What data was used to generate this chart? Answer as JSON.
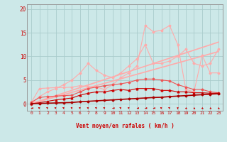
{
  "background_color": "#cce8e8",
  "grid_color": "#aacccc",
  "x_label": "Vent moyen/en rafales ( km/h )",
  "x_ticks": [
    0,
    1,
    2,
    3,
    4,
    5,
    6,
    7,
    8,
    9,
    10,
    11,
    12,
    13,
    14,
    15,
    16,
    17,
    18,
    19,
    20,
    21,
    22,
    23
  ],
  "ylim": [
    -1.5,
    21
  ],
  "xlim": [
    -0.5,
    23.5
  ],
  "y_ticks": [
    0,
    5,
    10,
    15,
    20
  ],
  "line_straight1": {
    "x": [
      0,
      23
    ],
    "y": [
      0.0,
      13.0
    ],
    "color": "#ffaaaa",
    "lw": 1.2,
    "marker": null,
    "ms": 0,
    "zorder": 2
  },
  "line_straight2": {
    "x": [
      0,
      23
    ],
    "y": [
      0.0,
      11.0
    ],
    "color": "#ffaaaa",
    "lw": 1.2,
    "marker": null,
    "ms": 0,
    "zorder": 2
  },
  "line_wavy1": {
    "x": [
      0,
      1,
      2,
      3,
      4,
      5,
      6,
      7,
      8,
      9,
      10,
      11,
      12,
      13,
      14,
      15,
      16,
      17,
      18,
      19,
      20,
      21,
      22,
      23
    ],
    "y": [
      0.3,
      3.2,
      3.3,
      3.4,
      3.4,
      3.5,
      3.8,
      3.6,
      3.5,
      3.0,
      4.0,
      5.5,
      6.5,
      8.0,
      16.5,
      15.2,
      15.5,
      16.5,
      12.5,
      3.0,
      2.5,
      10.2,
      6.5,
      6.5
    ],
    "color": "#ffaaaa",
    "lw": 0.8,
    "marker": "D",
    "ms": 1.5,
    "zorder": 3
  },
  "line_wavy2": {
    "x": [
      0,
      1,
      2,
      3,
      4,
      5,
      6,
      7,
      8,
      9,
      10,
      11,
      12,
      13,
      14,
      15,
      16,
      17,
      18,
      19,
      20,
      21,
      22,
      23
    ],
    "y": [
      0.0,
      1.5,
      2.5,
      3.2,
      4.0,
      5.0,
      6.5,
      8.5,
      7.0,
      6.0,
      5.5,
      6.5,
      8.0,
      9.5,
      12.5,
      8.5,
      8.5,
      9.0,
      10.0,
      11.5,
      8.5,
      8.0,
      8.5,
      11.5
    ],
    "color": "#ffaaaa",
    "lw": 0.8,
    "marker": "D",
    "ms": 1.5,
    "zorder": 3
  },
  "line_mid": {
    "x": [
      0,
      1,
      2,
      3,
      4,
      5,
      6,
      7,
      8,
      9,
      10,
      11,
      12,
      13,
      14,
      15,
      16,
      17,
      18,
      19,
      20,
      21,
      22,
      23
    ],
    "y": [
      0.3,
      1.3,
      1.5,
      1.6,
      1.7,
      1.8,
      2.5,
      3.2,
      3.5,
      3.8,
      4.0,
      4.2,
      4.5,
      5.0,
      5.2,
      5.2,
      5.0,
      4.8,
      4.0,
      3.5,
      3.0,
      3.0,
      2.5,
      2.3
    ],
    "color": "#ee5555",
    "lw": 0.8,
    "marker": "D",
    "ms": 1.5,
    "zorder": 4
  },
  "line_low2": {
    "x": [
      0,
      1,
      2,
      3,
      4,
      5,
      6,
      7,
      8,
      9,
      10,
      11,
      12,
      13,
      14,
      15,
      16,
      17,
      18,
      19,
      20,
      21,
      22,
      23
    ],
    "y": [
      0.0,
      0.2,
      0.5,
      0.8,
      1.0,
      1.2,
      1.8,
      2.2,
      2.5,
      2.5,
      2.8,
      3.0,
      2.8,
      3.2,
      3.2,
      3.2,
      2.8,
      2.8,
      2.5,
      2.5,
      2.3,
      2.3,
      2.2,
      2.2
    ],
    "color": "#cc0000",
    "lw": 0.8,
    "marker": "^",
    "ms": 2,
    "zorder": 5
  },
  "line_low1": {
    "x": [
      0,
      1,
      2,
      3,
      4,
      5,
      6,
      7,
      8,
      9,
      10,
      11,
      12,
      13,
      14,
      15,
      16,
      17,
      18,
      19,
      20,
      21,
      22,
      23
    ],
    "y": [
      0.0,
      0.05,
      0.1,
      0.15,
      0.2,
      0.25,
      0.4,
      0.5,
      0.6,
      0.7,
      0.8,
      0.9,
      1.0,
      1.1,
      1.2,
      1.3,
      1.35,
      1.5,
      1.6,
      1.7,
      1.8,
      1.9,
      2.0,
      2.1
    ],
    "color": "#aa0000",
    "lw": 1.2,
    "marker": "D",
    "ms": 1.5,
    "zorder": 6
  },
  "arrows": {
    "x": [
      0,
      1,
      2,
      3,
      4,
      5,
      6,
      7,
      8,
      9,
      10,
      11,
      12,
      13,
      14,
      15,
      16,
      17,
      18,
      19,
      20,
      21,
      22,
      23
    ],
    "angles": [
      270,
      225,
      225,
      225,
      225,
      225,
      225,
      225,
      225,
      225,
      270,
      225,
      225,
      270,
      270,
      270,
      225,
      225,
      0,
      45,
      45,
      45,
      45,
      45
    ]
  }
}
